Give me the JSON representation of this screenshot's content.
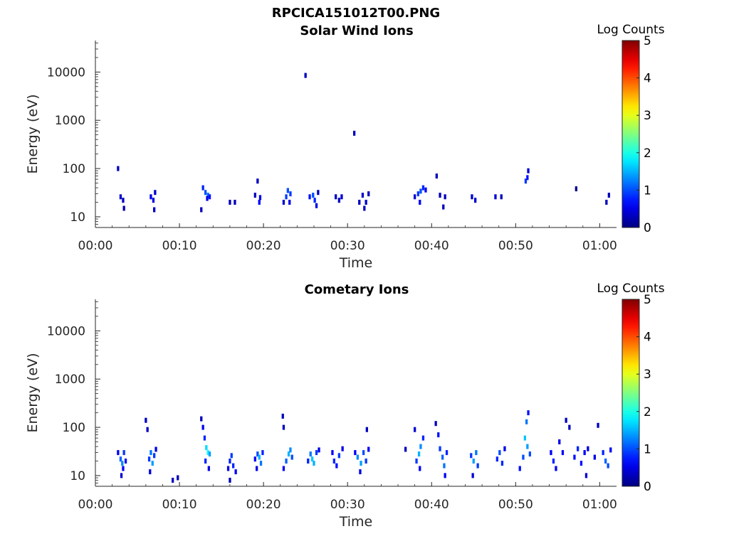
{
  "figure": {
    "title": "RPCICA151012T00.PNG"
  },
  "chart_data": [
    {
      "type": "heatmap",
      "title": "Solar Wind Ions",
      "xlabel": "Time",
      "ylabel": "Energy (eV)",
      "x_axis": {
        "unit": "minutes",
        "range": [
          0,
          62
        ],
        "ticks": [
          0,
          10,
          20,
          30,
          40,
          50,
          60
        ],
        "tick_labels": [
          "00:00",
          "00:10",
          "00:20",
          "00:30",
          "00:40",
          "00:50",
          "01:00"
        ]
      },
      "y_axis": {
        "scale": "log",
        "range": [
          6,
          45000
        ],
        "ticks": [
          10,
          100,
          1000,
          10000
        ],
        "tick_labels": [
          "10",
          "100",
          "1000",
          "10000"
        ]
      },
      "colorbar": {
        "label": "Log Counts",
        "range": [
          0,
          5
        ],
        "ticks": [
          "0",
          "1",
          "2",
          "3",
          "4",
          "5"
        ],
        "colormap": "jet"
      },
      "cells": [
        [
          2.7,
          100,
          0.3
        ],
        [
          3.0,
          26,
          0.4
        ],
        [
          3.3,
          22,
          0.3
        ],
        [
          3.4,
          15,
          0.2
        ],
        [
          6.6,
          26,
          0.5
        ],
        [
          6.9,
          22,
          0.5
        ],
        [
          7.1,
          32,
          0.4
        ],
        [
          7.0,
          14,
          0.3
        ],
        [
          12.6,
          14,
          0.3
        ],
        [
          12.8,
          40,
          0.8
        ],
        [
          13.1,
          32,
          1.0
        ],
        [
          13.4,
          28,
          1.2
        ],
        [
          13.6,
          26,
          0.7
        ],
        [
          13.3,
          24,
          0.5
        ],
        [
          16.0,
          20,
          0.3
        ],
        [
          16.6,
          20,
          0.3
        ],
        [
          19.0,
          28,
          0.3
        ],
        [
          19.3,
          55,
          0.3
        ],
        [
          19.5,
          20,
          0.6
        ],
        [
          19.6,
          25,
          0.5
        ],
        [
          22.4,
          20,
          0.4
        ],
        [
          22.7,
          26,
          0.9
        ],
        [
          22.9,
          35,
          1.0
        ],
        [
          23.2,
          30,
          0.9
        ],
        [
          23.1,
          20,
          0.5
        ],
        [
          25.0,
          8500,
          0.3
        ],
        [
          25.5,
          26,
          0.7
        ],
        [
          25.9,
          28,
          1.0
        ],
        [
          26.1,
          22,
          0.8
        ],
        [
          26.3,
          17,
          0.5
        ],
        [
          26.5,
          32,
          0.3
        ],
        [
          28.6,
          26,
          0.3
        ],
        [
          29.0,
          22,
          0.3
        ],
        [
          29.3,
          26,
          0.4
        ],
        [
          30.8,
          540,
          0.3
        ],
        [
          31.4,
          20,
          0.3
        ],
        [
          31.8,
          28,
          0.4
        ],
        [
          32.2,
          20,
          0.4
        ],
        [
          32.5,
          30,
          0.3
        ],
        [
          32.0,
          15,
          0.3
        ],
        [
          38.0,
          26,
          0.4
        ],
        [
          38.4,
          30,
          0.9
        ],
        [
          38.7,
          34,
          1.0
        ],
        [
          39.0,
          40,
          0.8
        ],
        [
          39.3,
          36,
          0.6
        ],
        [
          38.6,
          20,
          0.6
        ],
        [
          40.6,
          70,
          0.3
        ],
        [
          41.0,
          28,
          0.3
        ],
        [
          41.4,
          16,
          0.3
        ],
        [
          41.6,
          26,
          0.3
        ],
        [
          44.8,
          26,
          0.4
        ],
        [
          45.2,
          22,
          0.4
        ],
        [
          47.6,
          26,
          0.4
        ],
        [
          48.3,
          26,
          0.3
        ],
        [
          51.2,
          55,
          0.9
        ],
        [
          51.4,
          65,
          0.7
        ],
        [
          51.5,
          90,
          0.4
        ],
        [
          57.2,
          38,
          0.05
        ],
        [
          60.8,
          20,
          0.3
        ],
        [
          61.1,
          28,
          0.3
        ]
      ]
    },
    {
      "type": "heatmap",
      "title": "Cometary Ions",
      "xlabel": "Time",
      "ylabel": "Energy (eV)",
      "x_axis": {
        "unit": "minutes",
        "range": [
          0,
          62
        ],
        "ticks": [
          0,
          10,
          20,
          30,
          40,
          50,
          60
        ],
        "tick_labels": [
          "00:00",
          "00:10",
          "00:20",
          "00:30",
          "00:40",
          "00:50",
          "01:00"
        ]
      },
      "y_axis": {
        "scale": "log",
        "range": [
          6,
          45000
        ],
        "ticks": [
          10,
          100,
          1000,
          10000
        ],
        "tick_labels": [
          "10",
          "100",
          "1000",
          "10000"
        ]
      },
      "colorbar": {
        "label": "Log Counts",
        "range": [
          0,
          5
        ],
        "ticks": [
          "0",
          "1",
          "2",
          "3",
          "4",
          "5"
        ],
        "colormap": "jet"
      },
      "cells": [
        [
          2.7,
          30,
          0.6
        ],
        [
          3.0,
          22,
          1.1
        ],
        [
          3.2,
          18,
          1.3
        ],
        [
          3.4,
          30,
          0.9
        ],
        [
          3.6,
          20,
          0.7
        ],
        [
          3.1,
          10,
          0.4
        ],
        [
          3.3,
          14,
          0.6
        ],
        [
          6.0,
          140,
          0.3
        ],
        [
          6.2,
          90,
          0.3
        ],
        [
          6.4,
          22,
          0.9
        ],
        [
          6.6,
          30,
          1.2
        ],
        [
          6.8,
          18,
          1.4
        ],
        [
          7.0,
          26,
          0.9
        ],
        [
          7.2,
          35,
          0.5
        ],
        [
          6.5,
          12,
          0.5
        ],
        [
          9.2,
          8,
          0.3
        ],
        [
          9.8,
          9,
          0.3
        ],
        [
          12.6,
          150,
          0.3
        ],
        [
          12.8,
          100,
          0.6
        ],
        [
          13.0,
          60,
          0.8
        ],
        [
          13.2,
          38,
          1.7
        ],
        [
          13.4,
          30,
          1.9
        ],
        [
          13.6,
          28,
          1.4
        ],
        [
          13.1,
          20,
          0.8
        ],
        [
          13.5,
          14,
          0.5
        ],
        [
          15.8,
          14,
          0.5
        ],
        [
          16.0,
          20,
          0.8
        ],
        [
          16.2,
          26,
          0.9
        ],
        [
          16.4,
          16,
          0.8
        ],
        [
          16.7,
          12,
          0.6
        ],
        [
          16.0,
          8,
          0.3
        ],
        [
          19.0,
          22,
          0.6
        ],
        [
          19.3,
          28,
          1.0
        ],
        [
          19.5,
          24,
          1.5
        ],
        [
          19.7,
          18,
          1.2
        ],
        [
          19.9,
          30,
          0.8
        ],
        [
          19.2,
          14,
          0.5
        ],
        [
          22.3,
          170,
          0.3
        ],
        [
          22.4,
          100,
          0.3
        ],
        [
          22.4,
          14,
          0.6
        ],
        [
          22.7,
          20,
          1.1
        ],
        [
          23.0,
          28,
          1.5
        ],
        [
          23.2,
          34,
          1.3
        ],
        [
          23.4,
          24,
          1.0
        ],
        [
          25.3,
          20,
          0.8
        ],
        [
          25.6,
          28,
          1.2
        ],
        [
          25.8,
          22,
          1.6
        ],
        [
          26.0,
          18,
          1.5
        ],
        [
          26.3,
          30,
          0.9
        ],
        [
          26.6,
          34,
          0.5
        ],
        [
          28.2,
          30,
          0.6
        ],
        [
          28.4,
          20,
          0.8
        ],
        [
          28.7,
          16,
          0.7
        ],
        [
          29.0,
          26,
          0.9
        ],
        [
          29.4,
          36,
          0.5
        ],
        [
          30.9,
          30,
          0.6
        ],
        [
          31.2,
          24,
          1.3
        ],
        [
          31.6,
          18,
          1.4
        ],
        [
          31.9,
          30,
          1.0
        ],
        [
          32.2,
          20,
          0.9
        ],
        [
          32.5,
          35,
          0.6
        ],
        [
          31.5,
          12,
          0.5
        ],
        [
          32.3,
          90,
          0.3
        ],
        [
          36.9,
          35,
          0.3
        ],
        [
          38.0,
          90,
          0.4
        ],
        [
          38.2,
          20,
          0.9
        ],
        [
          38.5,
          28,
          1.5
        ],
        [
          38.7,
          40,
          1.3
        ],
        [
          39.0,
          60,
          0.8
        ],
        [
          38.6,
          14,
          0.6
        ],
        [
          40.5,
          120,
          0.3
        ],
        [
          40.8,
          70,
          0.7
        ],
        [
          41.0,
          36,
          0.9
        ],
        [
          41.3,
          24,
          1.1
        ],
        [
          41.5,
          16,
          1.2
        ],
        [
          41.8,
          30,
          0.8
        ],
        [
          41.6,
          10,
          0.6
        ],
        [
          44.7,
          26,
          0.9
        ],
        [
          45.0,
          20,
          1.4
        ],
        [
          45.3,
          30,
          1.2
        ],
        [
          45.5,
          16,
          0.9
        ],
        [
          44.9,
          10,
          0.4
        ],
        [
          47.8,
          22,
          0.8
        ],
        [
          48.1,
          30,
          1.0
        ],
        [
          48.4,
          18,
          0.8
        ],
        [
          48.7,
          36,
          0.5
        ],
        [
          50.5,
          14,
          0.7
        ],
        [
          50.9,
          24,
          1.0
        ],
        [
          51.1,
          60,
          1.6
        ],
        [
          51.3,
          130,
          1.2
        ],
        [
          51.5,
          200,
          0.7
        ],
        [
          51.4,
          40,
          1.4
        ],
        [
          51.7,
          28,
          1.0
        ],
        [
          54.2,
          30,
          0.6
        ],
        [
          54.5,
          20,
          0.8
        ],
        [
          54.8,
          14,
          0.6
        ],
        [
          55.2,
          50,
          0.5
        ],
        [
          55.6,
          30,
          0.6
        ],
        [
          56.0,
          140,
          0.3
        ],
        [
          56.4,
          100,
          0.3
        ],
        [
          57.0,
          24,
          0.7
        ],
        [
          57.4,
          36,
          0.8
        ],
        [
          57.8,
          18,
          0.7
        ],
        [
          58.2,
          30,
          0.6
        ],
        [
          58.6,
          36,
          0.5
        ],
        [
          58.4,
          10,
          0.4
        ],
        [
          59.4,
          24,
          0.5
        ],
        [
          59.8,
          110,
          0.3
        ],
        [
          60.4,
          30,
          0.8
        ],
        [
          60.7,
          20,
          1.1
        ],
        [
          61.0,
          16,
          1.0
        ],
        [
          61.3,
          34,
          0.6
        ]
      ]
    }
  ]
}
